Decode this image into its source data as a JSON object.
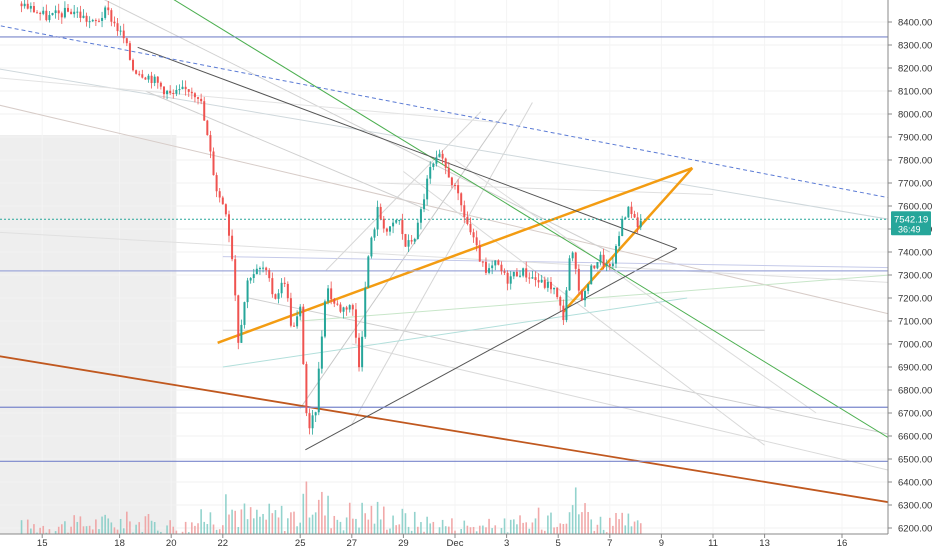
{
  "chart_data": {
    "type": "candlestick",
    "y_range": [
      6150,
      8525
    ],
    "y_ticks": [
      8400,
      8300,
      8200,
      8100,
      8000,
      7900,
      7800,
      7700,
      7600,
      7500,
      7400,
      7300,
      7200,
      7100,
      7000,
      6900,
      6800,
      6700,
      6600,
      6500,
      6400,
      6300,
      6200
    ],
    "x_ticks": [
      {
        "label": "15",
        "day": -16
      },
      {
        "label": "18",
        "day": -13
      },
      {
        "label": "20",
        "day": -11
      },
      {
        "label": "22",
        "day": -9
      },
      {
        "label": "25",
        "day": -6
      },
      {
        "label": "27",
        "day": -4
      },
      {
        "label": "29",
        "day": -2
      },
      {
        "label": "Dec",
        "day": 0
      },
      {
        "label": "3",
        "day": 2
      },
      {
        "label": "5",
        "day": 4
      },
      {
        "label": "7",
        "day": 6
      },
      {
        "label": "9",
        "day": 8
      },
      {
        "label": "11",
        "day": 10
      },
      {
        "label": "13",
        "day": 12
      },
      {
        "label": "16",
        "day": 15
      }
    ],
    "price_path": [
      [
        -16.8,
        8480
      ],
      [
        -15.8,
        8420
      ],
      [
        -14.8,
        8450
      ],
      [
        -14.0,
        8390
      ],
      [
        -13.5,
        8450
      ],
      [
        -12.8,
        8320
      ],
      [
        -12.5,
        8200
      ],
      [
        -11.8,
        8160
      ],
      [
        -11.0,
        8080
      ],
      [
        -10.3,
        8110
      ],
      [
        -9.9,
        8080
      ],
      [
        -9.6,
        7900
      ],
      [
        -9.2,
        7650
      ],
      [
        -8.9,
        7600
      ],
      [
        -8.6,
        7350
      ],
      [
        -8.4,
        7020
      ],
      [
        -8.0,
        7300
      ],
      [
        -7.4,
        7330
      ],
      [
        -7.0,
        7200
      ],
      [
        -6.6,
        7280
      ],
      [
        -6.3,
        7050
      ],
      [
        -6.0,
        7150
      ],
      [
        -5.7,
        6590
      ],
      [
        -5.4,
        6720
      ],
      [
        -5.0,
        7260
      ],
      [
        -4.7,
        7180
      ],
      [
        -4.4,
        7150
      ],
      [
        -4.0,
        7180
      ],
      [
        -3.7,
        6900
      ],
      [
        -3.4,
        7360
      ],
      [
        -3.0,
        7580
      ],
      [
        -2.6,
        7480
      ],
      [
        -2.2,
        7550
      ],
      [
        -1.9,
        7420
      ],
      [
        -1.5,
        7480
      ],
      [
        -1.0,
        7750
      ],
      [
        -0.6,
        7810
      ],
      [
        -0.2,
        7730
      ],
      [
        0.3,
        7580
      ],
      [
        0.8,
        7420
      ],
      [
        1.2,
        7300
      ],
      [
        1.6,
        7350
      ],
      [
        2.0,
        7280
      ],
      [
        2.5,
        7320
      ],
      [
        3.0,
        7290
      ],
      [
        3.4,
        7260
      ],
      [
        3.8,
        7250
      ],
      [
        4.0,
        7180
      ],
      [
        4.2,
        7120
      ],
      [
        4.5,
        7420
      ],
      [
        4.8,
        7230
      ],
      [
        5.0,
        7200
      ],
      [
        5.3,
        7330
      ],
      [
        5.6,
        7380
      ],
      [
        6.0,
        7320
      ],
      [
        6.3,
        7430
      ],
      [
        6.5,
        7560
      ],
      [
        6.8,
        7590
      ],
      [
        7.1,
        7520
      ],
      [
        7.3,
        7542
      ]
    ],
    "volume_path": [
      [
        -16.8,
        6230
      ],
      [
        -15.0,
        6240
      ],
      [
        -12.8,
        6260
      ],
      [
        -12.0,
        6250
      ],
      [
        -10.5,
        6230
      ],
      [
        -8.6,
        6340
      ],
      [
        -8.0,
        6290
      ],
      [
        -6.0,
        6300
      ],
      [
        -5.6,
        6420
      ],
      [
        -4.6,
        6300
      ],
      [
        -3.2,
        6320
      ],
      [
        -1.5,
        6260
      ],
      [
        0.0,
        6240
      ],
      [
        1.5,
        6230
      ],
      [
        3.0,
        6250
      ],
      [
        4.5,
        6400
      ],
      [
        5.5,
        6260
      ],
      [
        6.8,
        6250
      ],
      [
        7.3,
        6210
      ]
    ],
    "last_price": {
      "label": "7542.19",
      "countdown": "36:49",
      "value": 7542.19
    },
    "drawings": [
      {
        "kind": "orange-line",
        "p1": [
          -9.2,
          7005
        ],
        "p2": [
          9.2,
          7765
        ],
        "color": "#f39c12"
      },
      {
        "kind": "orange-line",
        "p1": [
          4.2,
          7140
        ],
        "p2": [
          9.2,
          7765
        ],
        "color": "#f39c12"
      },
      {
        "kind": "brown-line",
        "p1": [
          -20.0,
          6990
        ],
        "p2": [
          18.0,
          6290
        ],
        "color": "#c0581f"
      },
      {
        "kind": "green-line",
        "p1": [
          -11.3,
          8525
        ],
        "p2": [
          18.0,
          6510
        ],
        "color": "#4caf50"
      },
      {
        "kind": "grey-line",
        "p1": [
          -12.3,
          8290
        ],
        "p2": [
          8.6,
          7415
        ],
        "color": "#555555"
      },
      {
        "kind": "grey-line",
        "p1": [
          -5.8,
          6540
        ],
        "p2": [
          8.6,
          7415
        ],
        "color": "#555555"
      },
      {
        "kind": "blue-dash-line",
        "p1": [
          -20.0,
          8435
        ],
        "p2": [
          18.0,
          7610
        ],
        "color": "#5b7bd5"
      },
      {
        "kind": "h-level",
        "value": 8335,
        "color": "#7986cb"
      },
      {
        "kind": "h-level",
        "value": 6725,
        "color": "#7986cb"
      },
      {
        "kind": "h-level",
        "value": 6490,
        "color": "#7986cb"
      },
      {
        "kind": "h-level",
        "value": 7318,
        "color": "#9fa8da"
      }
    ],
    "colors": {
      "up": "#26a69a",
      "down": "#ef5350",
      "axis_bg": "#ffffff",
      "price_tag": "#26a69a"
    }
  }
}
